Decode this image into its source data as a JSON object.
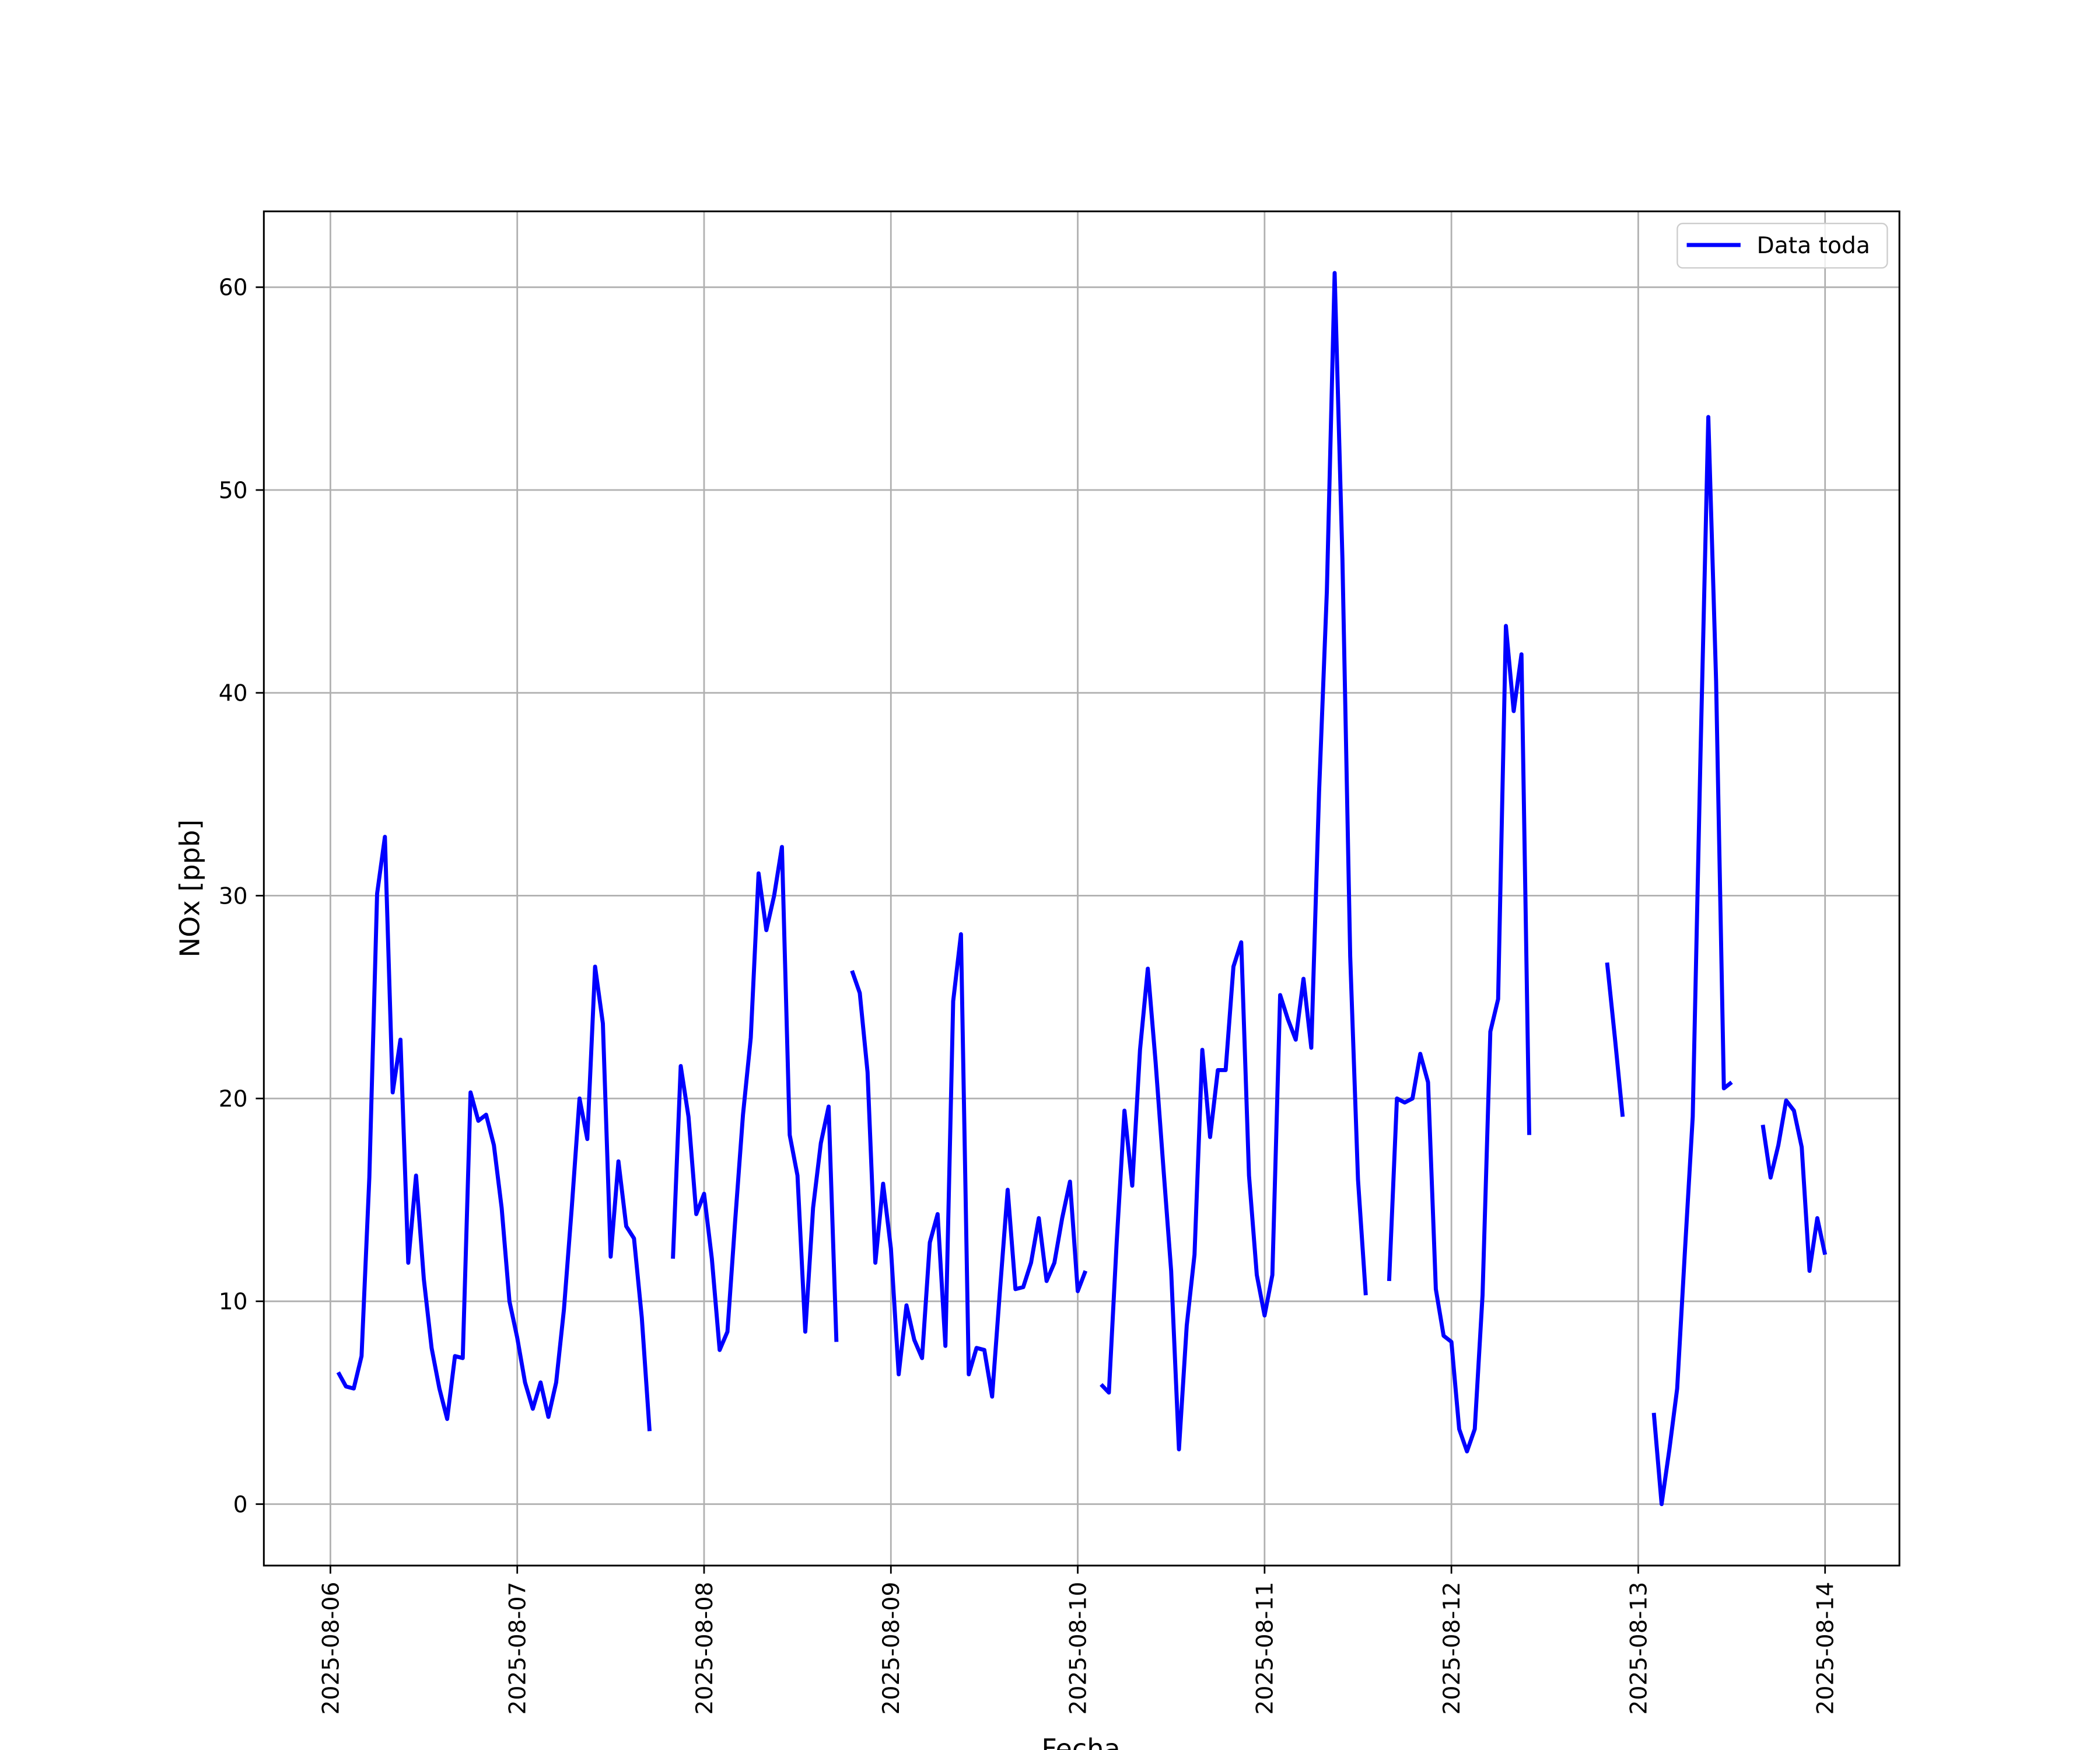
{
  "chart_data": {
    "type": "line",
    "xlabel": "Fecha",
    "ylabel": "NOx [ppb]",
    "x": [
      "2025-08-06 01:00",
      "2025-08-06 02:00",
      "2025-08-06 03:00",
      "2025-08-06 04:00",
      "2025-08-06 05:00",
      "2025-08-06 06:00",
      "2025-08-06 07:00",
      "2025-08-06 08:00",
      "2025-08-06 09:00",
      "2025-08-06 10:00",
      "2025-08-06 11:00",
      "2025-08-06 12:00",
      "2025-08-06 13:00",
      "2025-08-06 14:00",
      "2025-08-06 15:00",
      "2025-08-06 16:00",
      "2025-08-06 17:00",
      "2025-08-06 18:00",
      "2025-08-06 19:00",
      "2025-08-06 20:00",
      "2025-08-06 21:00",
      "2025-08-06 22:00",
      "2025-08-06 23:00",
      "2025-08-07 00:00",
      "2025-08-07 01:00",
      "2025-08-07 02:00",
      "2025-08-07 03:00",
      "2025-08-07 04:00",
      "2025-08-07 05:00",
      "2025-08-07 06:00",
      "2025-08-07 07:00",
      "2025-08-07 08:00",
      "2025-08-07 09:00",
      "2025-08-07 10:00",
      "2025-08-07 11:00",
      "2025-08-07 12:00",
      "2025-08-07 13:00",
      "2025-08-07 14:00",
      "2025-08-07 15:00",
      "2025-08-07 16:00",
      "2025-08-07 17:00",
      "2025-08-07 18:00",
      "2025-08-07 19:00",
      "2025-08-07 20:00",
      "2025-08-07 21:00",
      "2025-08-07 22:00",
      "2025-08-07 23:00",
      "2025-08-08 00:00",
      "2025-08-08 01:00",
      "2025-08-08 02:00",
      "2025-08-08 03:00",
      "2025-08-08 04:00",
      "2025-08-08 05:00",
      "2025-08-08 06:00",
      "2025-08-08 07:00",
      "2025-08-08 08:00",
      "2025-08-08 09:00",
      "2025-08-08 10:00",
      "2025-08-08 11:00",
      "2025-08-08 12:00",
      "2025-08-08 13:00",
      "2025-08-08 14:00",
      "2025-08-08 15:00",
      "2025-08-08 16:00",
      "2025-08-08 17:00",
      "2025-08-08 18:00",
      "2025-08-08 19:00",
      "2025-08-08 20:00",
      "2025-08-08 21:00",
      "2025-08-08 22:00",
      "2025-08-08 23:00",
      "2025-08-09 00:00",
      "2025-08-09 01:00",
      "2025-08-09 02:00",
      "2025-08-09 03:00",
      "2025-08-09 04:00",
      "2025-08-09 05:00",
      "2025-08-09 06:00",
      "2025-08-09 07:00",
      "2025-08-09 08:00",
      "2025-08-09 09:00",
      "2025-08-09 10:00",
      "2025-08-09 11:00",
      "2025-08-09 12:00",
      "2025-08-09 13:00",
      "2025-08-09 14:00",
      "2025-08-09 15:00",
      "2025-08-09 16:00",
      "2025-08-09 17:00",
      "2025-08-09 18:00",
      "2025-08-09 19:00",
      "2025-08-09 20:00",
      "2025-08-09 21:00",
      "2025-08-09 22:00",
      "2025-08-09 23:00",
      "2025-08-10 00:00",
      "2025-08-10 01:00",
      "2025-08-10 02:00",
      "2025-08-10 03:00",
      "2025-08-10 04:00",
      "2025-08-10 05:00",
      "2025-08-10 06:00",
      "2025-08-10 07:00",
      "2025-08-10 08:00",
      "2025-08-10 09:00",
      "2025-08-10 10:00",
      "2025-08-10 11:00",
      "2025-08-10 12:00",
      "2025-08-10 13:00",
      "2025-08-10 14:00",
      "2025-08-10 15:00",
      "2025-08-10 16:00",
      "2025-08-10 17:00",
      "2025-08-10 18:00",
      "2025-08-10 19:00",
      "2025-08-10 20:00",
      "2025-08-10 21:00",
      "2025-08-10 22:00",
      "2025-08-10 23:00",
      "2025-08-11 00:00",
      "2025-08-11 01:00",
      "2025-08-11 02:00",
      "2025-08-11 03:00",
      "2025-08-11 04:00",
      "2025-08-11 05:00",
      "2025-08-11 06:00",
      "2025-08-11 07:00",
      "2025-08-11 08:00",
      "2025-08-11 09:00",
      "2025-08-11 10:00",
      "2025-08-11 11:00",
      "2025-08-11 12:00",
      "2025-08-11 13:00",
      "2025-08-11 14:00",
      "2025-08-11 15:00",
      "2025-08-11 16:00",
      "2025-08-11 17:00",
      "2025-08-11 18:00",
      "2025-08-11 19:00",
      "2025-08-11 20:00",
      "2025-08-11 21:00",
      "2025-08-11 22:00",
      "2025-08-11 23:00",
      "2025-08-12 00:00",
      "2025-08-12 01:00",
      "2025-08-12 02:00",
      "2025-08-12 03:00",
      "2025-08-12 04:00",
      "2025-08-12 05:00",
      "2025-08-12 06:00",
      "2025-08-12 07:00",
      "2025-08-12 08:00",
      "2025-08-12 09:00",
      "2025-08-12 10:00",
      "2025-08-12 11:00",
      "2025-08-12 12:00",
      "2025-08-12 13:00",
      "2025-08-12 14:00",
      "2025-08-12 15:00",
      "2025-08-12 16:00",
      "2025-08-12 17:00",
      "2025-08-12 18:00",
      "2025-08-12 19:00",
      "2025-08-12 20:00",
      "2025-08-12 21:00",
      "2025-08-12 22:00",
      "2025-08-12 23:00",
      "2025-08-13 00:00",
      "2025-08-13 01:00",
      "2025-08-13 02:00",
      "2025-08-13 03:00",
      "2025-08-13 04:00",
      "2025-08-13 05:00",
      "2025-08-13 06:00",
      "2025-08-13 07:00",
      "2025-08-13 08:00",
      "2025-08-13 09:00",
      "2025-08-13 10:00",
      "2025-08-13 11:00",
      "2025-08-13 12:00",
      "2025-08-13 13:00",
      "2025-08-13 14:00",
      "2025-08-13 15:00",
      "2025-08-13 16:00",
      "2025-08-13 17:00",
      "2025-08-13 18:00",
      "2025-08-13 19:00",
      "2025-08-13 20:00",
      "2025-08-13 21:00",
      "2025-08-13 22:00",
      "2025-08-13 23:00",
      "2025-08-14 00:00"
    ],
    "series": [
      {
        "name": "Data toda",
        "color": "#0000ff",
        "values": [
          6.5,
          5.8,
          5.7,
          7.3,
          16.1,
          30.1,
          32.9,
          20.3,
          22.9,
          11.9,
          16.2,
          11.1,
          7.7,
          5.7,
          4.2,
          7.3,
          7.2,
          20.3,
          18.9,
          19.2,
          17.7,
          14.6,
          10.0,
          8.2,
          6.0,
          4.7,
          6.0,
          4.3,
          6.0,
          9.6,
          14.6,
          20.0,
          18.0,
          26.5,
          23.7,
          12.2,
          16.9,
          13.7,
          13.1,
          9.2,
          3.6,
          null,
          null,
          12.1,
          21.6,
          19.1,
          14.3,
          15.3,
          12.1,
          7.6,
          8.5,
          14.0,
          19.2,
          23.0,
          31.1,
          28.3,
          30.0,
          32.4,
          18.2,
          16.2,
          8.5,
          14.6,
          17.8,
          19.6,
          8.0,
          null,
          26.3,
          25.2,
          21.3,
          11.9,
          15.8,
          12.6,
          6.4,
          9.8,
          8.1,
          7.2,
          12.9,
          14.3,
          7.8,
          24.8,
          28.1,
          6.4,
          7.7,
          7.6,
          5.3,
          10.5,
          15.5,
          10.6,
          10.7,
          11.9,
          14.1,
          11.0,
          11.9,
          14.1,
          15.9,
          10.5,
          11.5,
          null,
          5.9,
          5.5,
          12.9,
          19.4,
          15.7,
          22.4,
          26.4,
          21.8,
          16.6,
          11.5,
          2.7,
          8.8,
          12.3,
          22.4,
          18.1,
          21.4,
          21.4,
          26.5,
          27.7,
          16.2,
          11.3,
          9.3,
          11.3,
          25.1,
          23.9,
          22.9,
          25.9,
          22.5,
          35.1,
          45.0,
          60.7,
          46.6,
          27.0,
          16.0,
          10.3,
          null,
          null,
          11.0,
          20.0,
          19.8,
          20.0,
          22.2,
          20.8,
          10.6,
          8.3,
          8.0,
          3.7,
          2.6,
          3.7,
          10.3,
          23.3,
          24.9,
          43.3,
          39.1,
          41.9,
          18.2,
          null,
          null,
          null,
          null,
          null,
          null,
          null,
          null,
          null,
          26.7,
          23.0,
          19.1,
          null,
          null,
          null,
          4.5,
          0.0,
          2.7,
          5.7,
          12.5,
          19.1,
          37.0,
          53.6,
          40.6,
          20.5,
          20.8,
          null,
          null,
          null,
          18.7,
          16.1,
          17.7,
          19.9,
          19.4,
          17.6,
          11.5,
          14.1,
          12.3
        ]
      }
    ],
    "xlim": [
      "2025-08-05 15:27",
      "2025-08-14 09:33"
    ],
    "xticks": [
      "2025-08-06",
      "2025-08-07",
      "2025-08-08",
      "2025-08-09",
      "2025-08-10",
      "2025-08-11",
      "2025-08-12",
      "2025-08-13",
      "2025-08-14"
    ],
    "ylim": [
      -3.03,
      63.74
    ],
    "yticks": [
      0,
      10,
      20,
      30,
      40,
      50,
      60
    ],
    "grid": true,
    "legend": "upper right"
  }
}
